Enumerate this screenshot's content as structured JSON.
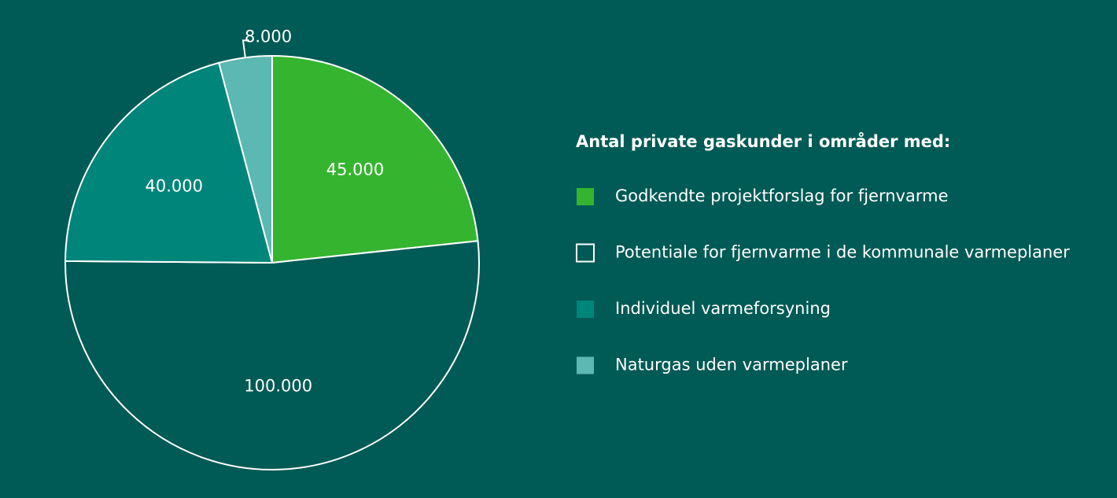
{
  "chart_data": {
    "type": "pie",
    "legend_title": "Antal private gaskunder i områder med:",
    "categories": [
      "Godkendte projektforslag for fjernvarme",
      "Potentiale for fjernvarme i de kommunale varmeplaner",
      "Individuel varmeforsyning",
      "Naturgas uden varmeplaner"
    ],
    "values": [
      45000,
      100000,
      40000,
      8000
    ],
    "value_labels": [
      "45.000",
      "100.000",
      "40.000",
      "8.000"
    ],
    "colors": [
      "#35b52f",
      "#005a55",
      "#00857a",
      "#5bb8b2"
    ],
    "background": "#005a55",
    "legend": "right"
  }
}
